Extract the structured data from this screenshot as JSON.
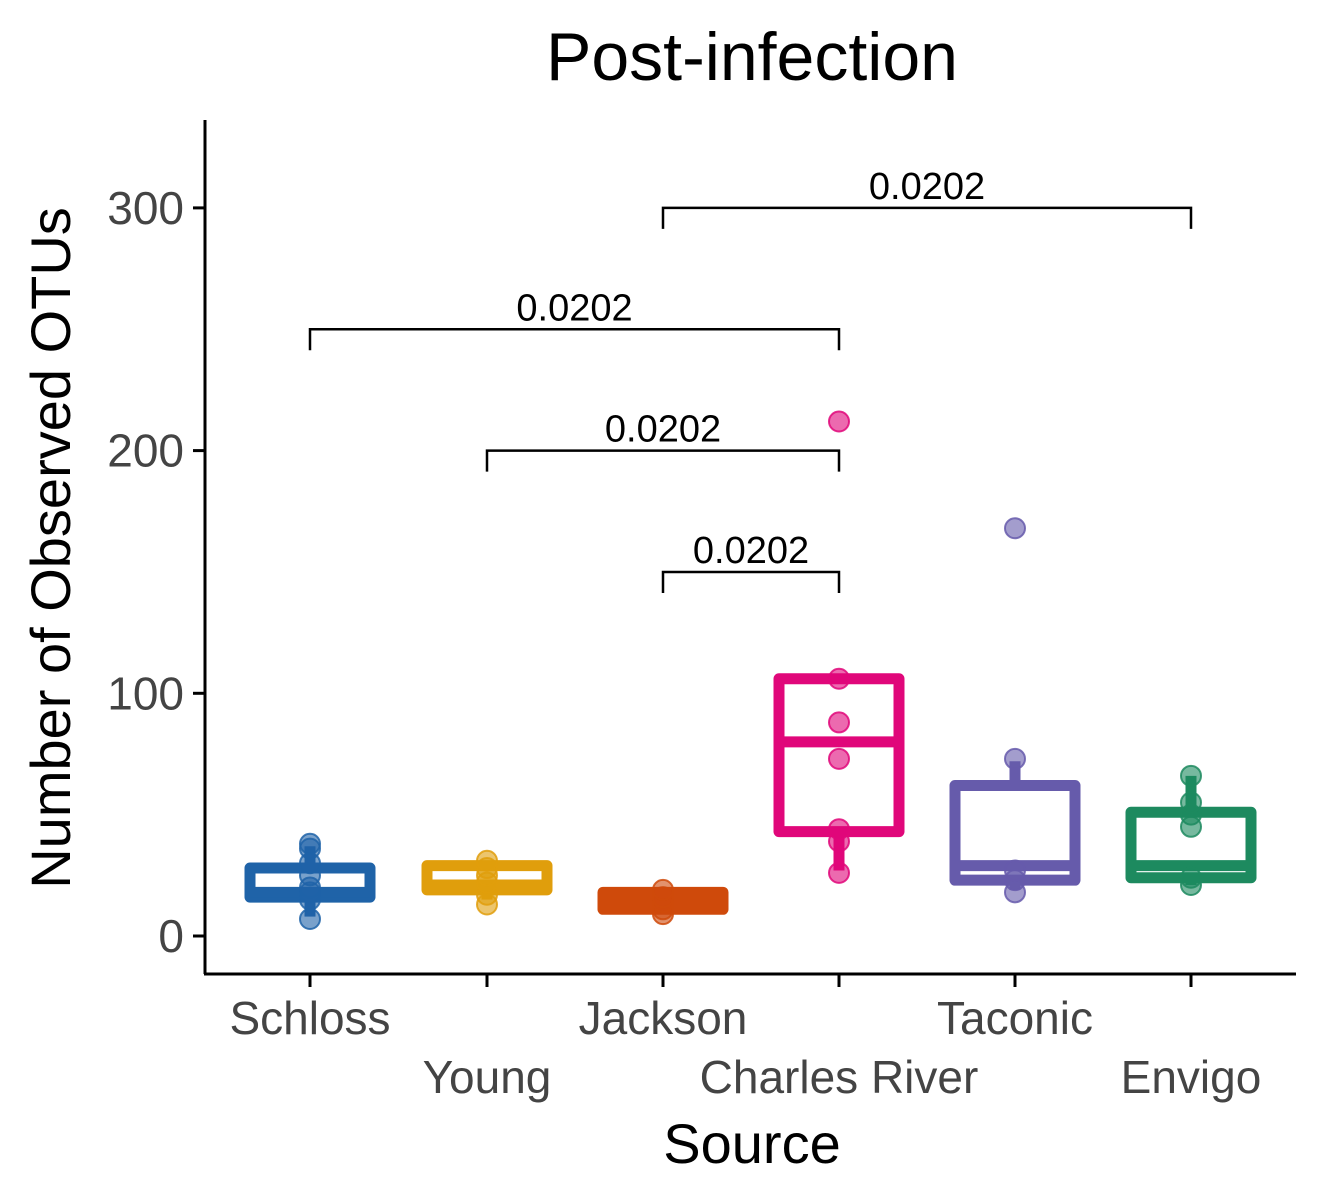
{
  "chart_data": {
    "type": "box",
    "title": "Post-infection",
    "xlabel": "Source",
    "ylabel": "Number of Observed OTUs",
    "ylim": [
      -15,
      335
    ],
    "yticks": [
      0,
      100,
      200,
      300
    ],
    "grid": false,
    "legend": "none",
    "categories": [
      "Schloss",
      "Young",
      "Jackson",
      "Charles River",
      "Taconic",
      "Envigo"
    ],
    "colors": {
      "Schloss": "#1f63a8",
      "Young": "#e09e0c",
      "Jackson": "#cf4a0b",
      "Charles River": "#e0077a",
      "Taconic": "#665bab",
      "Envigo": "#1d8a5f"
    },
    "boxes": [
      {
        "category": "Schloss",
        "q1": 16,
        "median": 18,
        "q3": 28,
        "whisker_low": 8,
        "whisker_high": 37
      },
      {
        "category": "Young",
        "q1": 19,
        "median": 21,
        "q3": 29,
        "whisker_low": 15,
        "whisker_high": 31
      },
      {
        "category": "Jackson",
        "q1": 11,
        "median": 14,
        "q3": 18,
        "whisker_low": 10,
        "whisker_high": 19
      },
      {
        "category": "Charles River",
        "q1": 43,
        "median": 80,
        "q3": 106,
        "whisker_low": 27,
        "whisker_high": 106
      },
      {
        "category": "Taconic",
        "q1": 23,
        "median": 29,
        "q3": 62,
        "whisker_low": 19,
        "whisker_high": 72
      },
      {
        "category": "Envigo",
        "q1": 24,
        "median": 29,
        "q3": 51,
        "whisker_low": 21,
        "whisker_high": 66
      }
    ],
    "points": [
      {
        "category": "Schloss",
        "values": [
          7,
          15,
          18,
          20,
          25,
          30,
          36,
          38
        ]
      },
      {
        "category": "Young",
        "values": [
          13,
          17,
          22,
          25,
          28,
          31
        ]
      },
      {
        "category": "Jackson",
        "values": [
          9,
          11,
          14,
          16,
          19
        ]
      },
      {
        "category": "Charles River",
        "values": [
          26,
          39,
          44,
          73,
          88,
          106,
          212
        ]
      },
      {
        "category": "Taconic",
        "values": [
          18,
          23,
          27,
          73,
          168
        ]
      },
      {
        "category": "Envigo",
        "values": [
          21,
          24,
          45,
          50,
          55,
          66
        ]
      }
    ],
    "comparisons": [
      {
        "from": "Jackson",
        "to": "Charles River",
        "y": 150,
        "label": "0.0202"
      },
      {
        "from": "Young",
        "to": "Charles River",
        "y": 200,
        "label": "0.0202"
      },
      {
        "from": "Schloss",
        "to": "Charles River",
        "y": 250,
        "label": "0.0202"
      },
      {
        "from": "Jackson",
        "to": "Envigo",
        "y": 300,
        "label": "0.0202"
      }
    ]
  }
}
